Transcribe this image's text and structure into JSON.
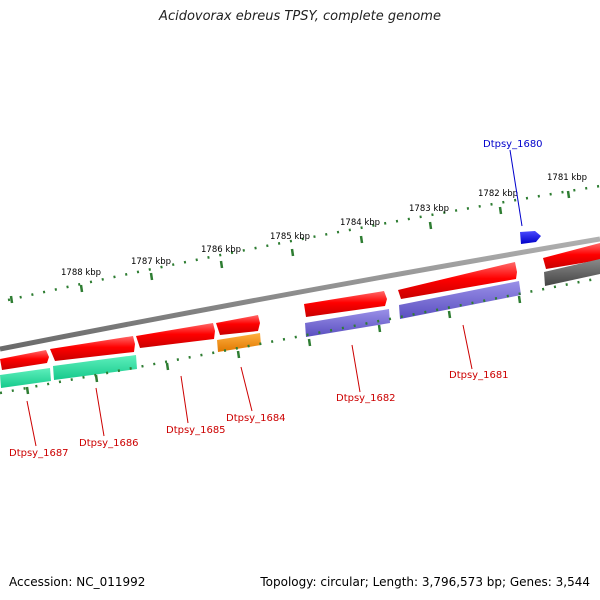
{
  "title": "Acidovorax ebreus TPSY, complete genome",
  "accession": "Accession: NC_011992",
  "summary": "Topology: circular; Length: 3,796,573 bp; Genes: 3,544",
  "colors": {
    "backbone": "#7a7a7a",
    "forward_gene": "#e60000",
    "reverse_gene": "#e60000",
    "protein_purple": "#6a5acd",
    "protein_green": "#22d79a",
    "protein_orange": "#f08c00",
    "protein_gray": "#555555",
    "highlight_gene": "#0000e6",
    "scale_tick": "#2e7d32",
    "label_red": "#cc0000",
    "label_blue": "#0000cc"
  },
  "scale_labels": [
    "1788 kbp",
    "1787 kbp",
    "1786 kbp",
    "1785 kbp",
    "1784 kbp",
    "1783 kbp",
    "1782 kbp",
    "1781 kbp"
  ],
  "gene_labels": [
    {
      "id": "dtpsy-1680",
      "text": "Dtpsy_1680",
      "strand": "forward"
    },
    {
      "id": "dtpsy-1681",
      "text": "Dtpsy_1681",
      "strand": "reverse"
    },
    {
      "id": "dtpsy-1682",
      "text": "Dtpsy_1682",
      "strand": "reverse"
    },
    {
      "id": "dtpsy-1684",
      "text": "Dtpsy_1684",
      "strand": "reverse"
    },
    {
      "id": "dtpsy-1685",
      "text": "Dtpsy_1685",
      "strand": "reverse"
    },
    {
      "id": "dtpsy-1686",
      "text": "Dtpsy_1686",
      "strand": "reverse"
    },
    {
      "id": "dtpsy-1687",
      "text": "Dtpsy_1687",
      "strand": "reverse"
    }
  ]
}
